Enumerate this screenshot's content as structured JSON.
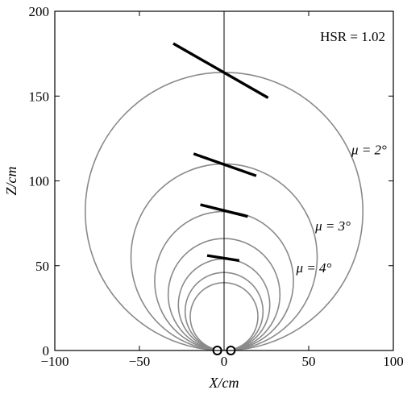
{
  "chart_data": {
    "type": "line",
    "xlabel": "X/cm",
    "ylabel": "Z/cm",
    "xlim": [
      -100,
      100
    ],
    "ylim": [
      0,
      200
    ],
    "xticks": [
      -100,
      -50,
      0,
      50,
      100
    ],
    "yticks": [
      0,
      50,
      100,
      150,
      200
    ],
    "xtick_labels": [
      "−100",
      "−50",
      "0",
      "50",
      "100"
    ],
    "ytick_labels": [
      "0",
      "50",
      "100",
      "150",
      "200"
    ],
    "grid": false,
    "annotation_hsr": "HSR = 1.02",
    "center_line_x": 0,
    "circles": [
      {
        "x_center": 0,
        "z_center": 82,
        "radius": 82,
        "label": "μ = 2°"
      },
      {
        "x_center": 0,
        "z_center": 55,
        "radius": 55,
        "label": "μ = 3°"
      },
      {
        "x_center": 0,
        "z_center": 41,
        "radius": 41,
        "label": "μ = 4°"
      },
      {
        "x_center": 0,
        "z_center": 33,
        "radius": 33,
        "label": ""
      },
      {
        "x_center": 0,
        "z_center": 27,
        "radius": 27,
        "label": ""
      },
      {
        "x_center": 0,
        "z_center": 23,
        "radius": 23,
        "label": ""
      },
      {
        "x_center": 0,
        "z_center": 20,
        "radius": 20,
        "label": ""
      }
    ],
    "segments": [
      {
        "x": [
          -30,
          26
        ],
        "z": [
          181,
          149
        ]
      },
      {
        "x": [
          -18,
          19
        ],
        "z": [
          116,
          103
        ]
      },
      {
        "x": [
          -14,
          14
        ],
        "z": [
          86,
          79
        ]
      },
      {
        "x": [
          -10,
          9
        ],
        "z": [
          56,
          53
        ]
      }
    ],
    "markers": [
      {
        "x": -4,
        "z": 0
      },
      {
        "x": 4,
        "z": 0
      }
    ],
    "colors": {
      "circles": "#8a8a8a",
      "segments": "#000000",
      "frame": "#000000"
    }
  }
}
